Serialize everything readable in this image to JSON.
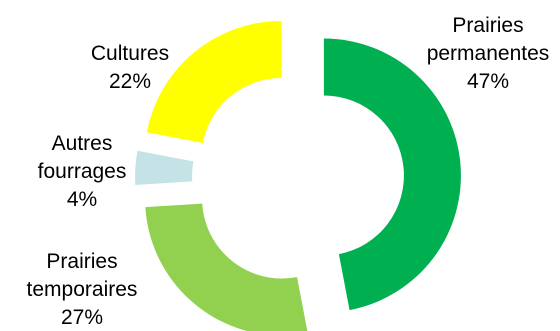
{
  "chart_data": {
    "type": "pie",
    "style": "doughnut-exploded",
    "labels_on_chart": true,
    "legend": "none",
    "slices": [
      {
        "label_lines": [
          "Prairies",
          "permanentes"
        ],
        "value": 47,
        "value_label": "47%",
        "color": "#00B050"
      },
      {
        "label_lines": [
          "Prairies",
          "temporaires"
        ],
        "value": 27,
        "value_label": "27%",
        "color": "#92D050"
      },
      {
        "label_lines": [
          "Autres",
          "fourrages"
        ],
        "value": 4,
        "value_label": "4%",
        "color": "#C5E3E6"
      },
      {
        "label_lines": [
          "Cultures"
        ],
        "value": 22,
        "value_label": "22%",
        "color": "#FFFF00"
      }
    ]
  }
}
